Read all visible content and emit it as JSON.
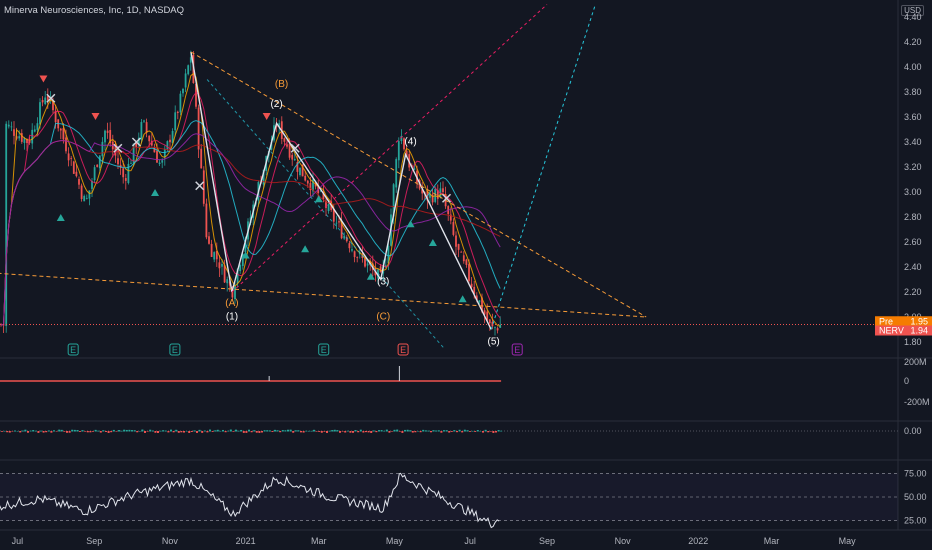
{
  "header": {
    "title": "Minerva Neurosciences, Inc, 1D, NASDAQ",
    "currency": "USD"
  },
  "price_pane": {
    "y_ticks": [
      "4.40",
      "4.20",
      "4.00",
      "3.80",
      "3.60",
      "3.40",
      "3.20",
      "3.00",
      "2.80",
      "2.60",
      "2.40",
      "2.20",
      "2.00",
      "1.80"
    ],
    "y_tick_values": [
      4.4,
      4.2,
      4.0,
      3.8,
      3.6,
      3.4,
      3.2,
      3.0,
      2.8,
      2.6,
      2.4,
      2.2,
      2.0,
      1.8
    ],
    "badges": [
      {
        "label": "Pre",
        "value": "1.95",
        "color": "#f57c00"
      },
      {
        "label": "NERV",
        "value": "1.94",
        "color": "#ef5350"
      }
    ],
    "wave_labels": [
      {
        "text": "(A)",
        "color": "#f89c38"
      },
      {
        "text": "(1)",
        "color": "#ffffff"
      },
      {
        "text": "(2)",
        "color": "#ffffff"
      },
      {
        "text": "(B)",
        "color": "#f89c38"
      },
      {
        "text": "(3)",
        "color": "#ffffff"
      },
      {
        "text": "(C)",
        "color": "#f89c38"
      },
      {
        "text": "(4)",
        "color": "#ffffff"
      },
      {
        "text": "(5)",
        "color": "#ffffff"
      }
    ],
    "earnings_marker": "E"
  },
  "volume_pane": {
    "ticks": [
      "200M",
      "0",
      "-200M"
    ]
  },
  "macd_pane": {
    "ticks": [
      "0.00"
    ]
  },
  "rsi_pane": {
    "ticks": [
      "75.00",
      "50.00",
      "25.00"
    ]
  },
  "x_axis": {
    "ticks": [
      "Jul",
      "Sep",
      "Nov",
      "2021",
      "Mar",
      "May",
      "Jul",
      "Sep",
      "Nov",
      "2022",
      "Mar",
      "May"
    ]
  },
  "colors": {
    "up": "#26a69a",
    "down": "#ef5350",
    "background": "#131722",
    "fib": "#f89c38"
  },
  "chart_data": {
    "type": "line",
    "title": "Minerva Neurosciences, Inc, 1D, NASDAQ",
    "ylim": [
      1.75,
      4.45
    ],
    "price_path": [
      {
        "t": "2020-06-20",
        "close": 3.55
      },
      {
        "t": "2020-07-10",
        "close": 3.4
      },
      {
        "t": "2020-07-24",
        "close": 3.8
      },
      {
        "t": "2020-08-10",
        "close": 3.35
      },
      {
        "t": "2020-08-25",
        "close": 2.9
      },
      {
        "t": "2020-09-10",
        "close": 3.5
      },
      {
        "t": "2020-09-25",
        "close": 3.1
      },
      {
        "t": "2020-10-10",
        "close": 3.55
      },
      {
        "t": "2020-10-25",
        "close": 3.2
      },
      {
        "t": "2020-11-10",
        "close": 3.75
      },
      {
        "t": "2020-11-18",
        "close": 4.1
      },
      {
        "t": "2020-12-01",
        "close": 2.6
      },
      {
        "t": "2020-12-10",
        "close": 2.45
      },
      {
        "t": "2020-12-21",
        "close": 2.2
      },
      {
        "t": "2021-01-10",
        "close": 3.0
      },
      {
        "t": "2021-01-26",
        "close": 3.55
      },
      {
        "t": "2021-02-12",
        "close": 3.2
      },
      {
        "t": "2021-02-28",
        "close": 3.0
      },
      {
        "t": "2021-03-15",
        "close": 2.75
      },
      {
        "t": "2021-04-01",
        "close": 2.5
      },
      {
        "t": "2021-04-20",
        "close": 2.3
      },
      {
        "t": "2021-04-25",
        "close": 2.5
      },
      {
        "t": "2021-05-05",
        "close": 3.5
      },
      {
        "t": "2021-05-12",
        "close": 3.25
      },
      {
        "t": "2021-05-25",
        "close": 2.95
      },
      {
        "t": "2021-06-08",
        "close": 3.0
      },
      {
        "t": "2021-06-20",
        "close": 2.55
      },
      {
        "t": "2021-07-05",
        "close": 2.2
      },
      {
        "t": "2021-07-18",
        "close": 1.9
      },
      {
        "t": "2021-07-26",
        "close": 1.94
      }
    ],
    "trendlines": [
      {
        "name": "upper",
        "from": {
          "t": "2020-11-18",
          "y": 4.12
        },
        "to": {
          "t": "2021-11-20",
          "y": 2.0
        }
      },
      {
        "name": "lower",
        "from": {
          "t": "2020-06-15",
          "y": 2.35
        },
        "to": {
          "t": "2021-11-20",
          "y": 2.0
        }
      }
    ],
    "current_price": 1.94,
    "premarket_price": 1.95,
    "rsi": [
      {
        "t": "2020-06-15",
        "v": 40
      },
      {
        "t": "2020-07-20",
        "v": 48
      },
      {
        "t": "2020-08-25",
        "v": 35
      },
      {
        "t": "2020-10-01",
        "v": 52
      },
      {
        "t": "2020-11-18",
        "v": 68
      },
      {
        "t": "2020-12-22",
        "v": 32
      },
      {
        "t": "2021-01-26",
        "v": 70
      },
      {
        "t": "2021-03-10",
        "v": 50
      },
      {
        "t": "2021-04-22",
        "v": 38
      },
      {
        "t": "2021-05-06",
        "v": 73
      },
      {
        "t": "2021-06-10",
        "v": 48
      },
      {
        "t": "2021-07-18",
        "v": 22
      },
      {
        "t": "2021-07-26",
        "v": 28
      }
    ],
    "rsi_ylim": [
      15,
      85
    ]
  }
}
